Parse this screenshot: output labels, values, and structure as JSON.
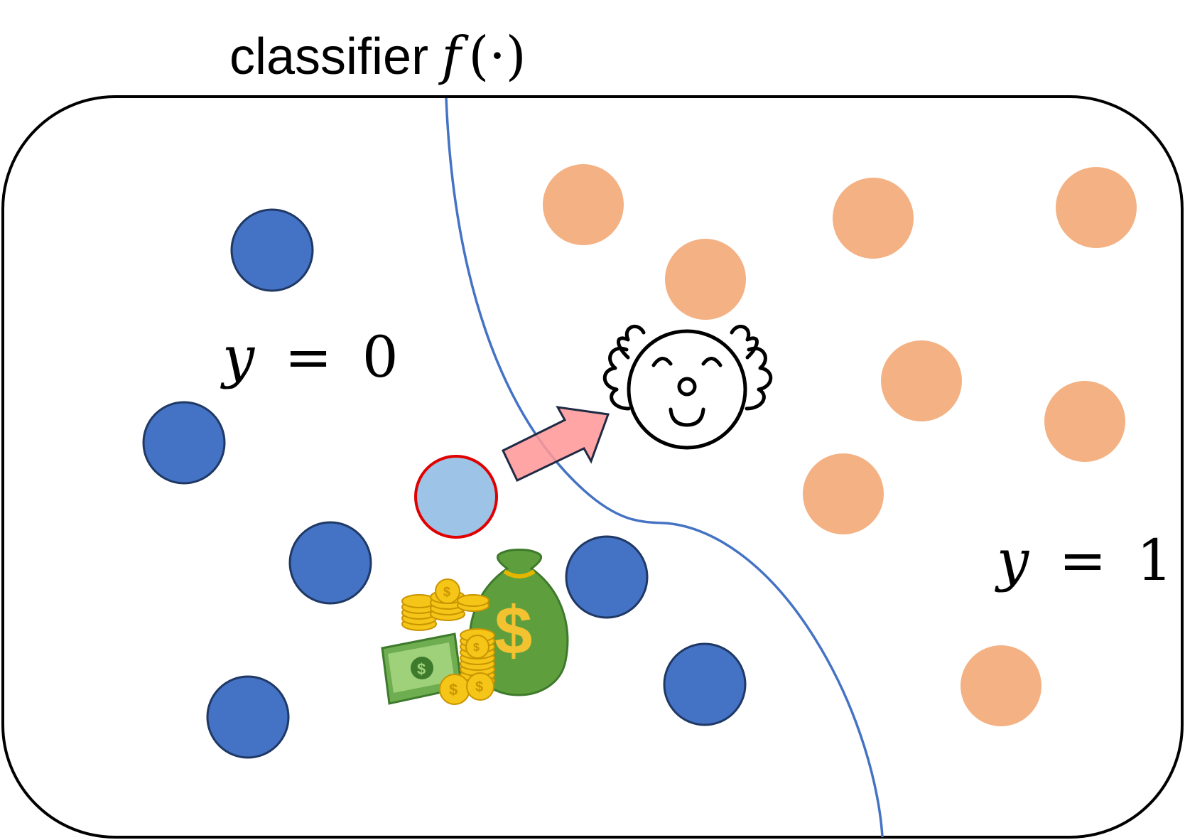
{
  "title": {
    "text": "classifier",
    "function_symbol": "f",
    "function_args": "(·)"
  },
  "labels": {
    "class0": {
      "var": "y",
      "eq": "=",
      "value": "0"
    },
    "class1": {
      "var": "y",
      "eq": "=",
      "value": "1"
    }
  },
  "colors": {
    "class0_fill": "#4472C4",
    "class0_stroke": "#1F3864",
    "class1_fill": "#F4B183",
    "highlighted_fill": "#9DC3E6",
    "highlighted_stroke": "#E00000",
    "boundary": "#4472C4",
    "arrow_fill": "#FF9999",
    "arrow_stroke": "#1F2A44",
    "frame": "#000000"
  },
  "icons": {
    "money": "money-bag-icon",
    "clown": "clown-face-icon",
    "arrow": "right-arrow-icon"
  }
}
